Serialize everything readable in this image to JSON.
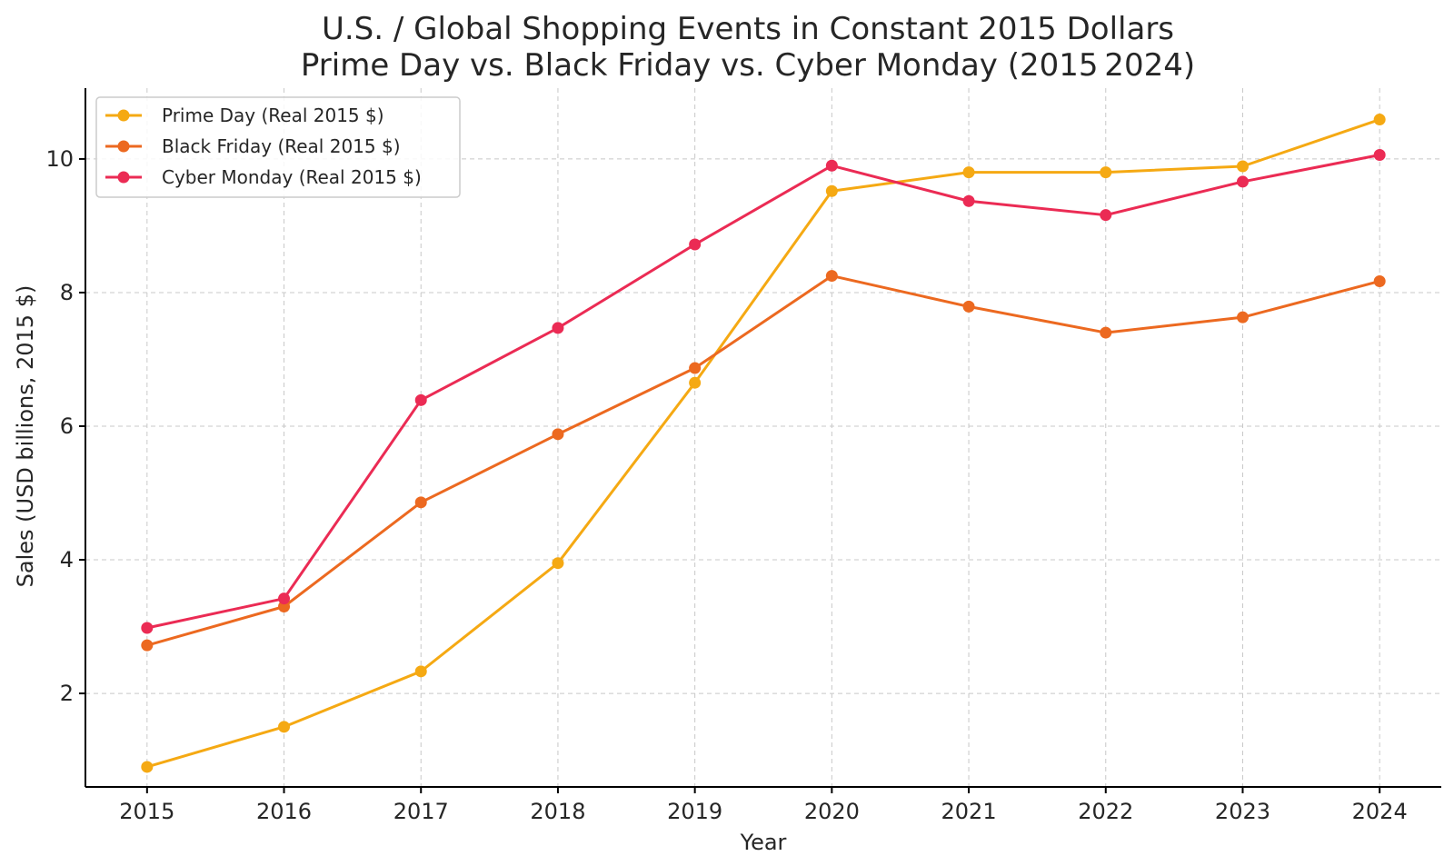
{
  "chart_data": {
    "type": "line",
    "title_line1": "U.S. / Global Shopping Events in Constant 2015 Dollars",
    "title_line2": "Prime Day vs. Black Friday vs. Cyber Monday (2015 2024)",
    "xlabel": "Year",
    "ylabel": "Sales (USD billions, 2015 $)",
    "x": [
      2015,
      2016,
      2017,
      2018,
      2019,
      2020,
      2021,
      2022,
      2023,
      2024
    ],
    "x_tick_labels": [
      "2015",
      "2016",
      "2017",
      "2018",
      "2019",
      "2020",
      "2021",
      "2022",
      "2023",
      "2024"
    ],
    "y_ticks": [
      2,
      4,
      6,
      8,
      10
    ],
    "y_tick_labels": [
      "2",
      "4",
      "6",
      "8",
      "10"
    ],
    "xlim": [
      2014.55,
      2024.45
    ],
    "ylim": [
      0.6,
      11.06
    ],
    "grid": true,
    "legend_position": "top-left",
    "series": [
      {
        "name": "Prime Day (Real 2015 $)",
        "color": "#f5a913",
        "values": [
          0.9,
          1.5,
          2.33,
          3.95,
          6.65,
          9.52,
          9.8,
          9.8,
          9.89,
          10.59
        ]
      },
      {
        "name": "Black Friday (Real 2015 $)",
        "color": "#ec6920",
        "values": [
          2.72,
          3.3,
          4.86,
          5.88,
          6.87,
          8.25,
          7.79,
          7.4,
          7.63,
          8.17
        ]
      },
      {
        "name": "Cyber Monday (Real 2015 $)",
        "color": "#eb2b54",
        "values": [
          2.98,
          3.42,
          6.39,
          7.47,
          8.72,
          9.9,
          9.37,
          9.16,
          9.66,
          10.06
        ]
      }
    ]
  }
}
